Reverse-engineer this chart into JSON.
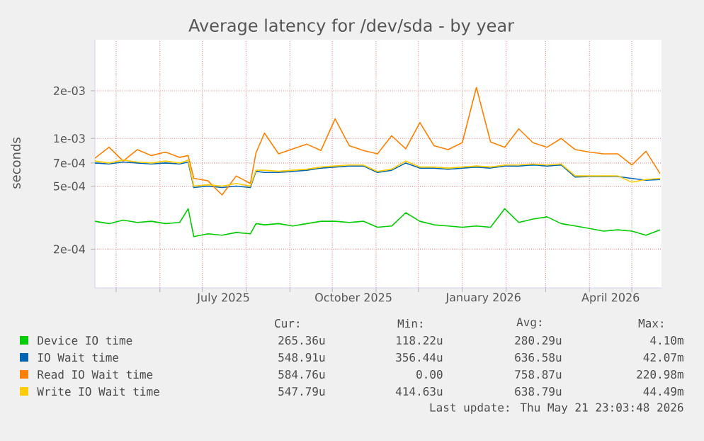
{
  "chart_data": {
    "type": "line",
    "title": "Average latency for /dev/sda - by year",
    "ylabel": "seconds",
    "log": "y",
    "grid": true,
    "legend": "bottom",
    "marker": "none",
    "line_style": "solid",
    "xlim": [
      "2025-04-16",
      "2026-05-22"
    ],
    "ylim": [
      0.000114,
      0.0042
    ],
    "yticks": [
      {
        "value": 0.0002,
        "label": "2e-04"
      },
      {
        "value": 0.0005,
        "label": "5e-04"
      },
      {
        "value": 0.0007,
        "label": "7e-04"
      },
      {
        "value": 0.001,
        "label": "1e-03"
      },
      {
        "value": 0.002,
        "label": "2e-03"
      }
    ],
    "xticks": [
      {
        "value": "2025-05-01",
        "label": null
      },
      {
        "value": "2025-06-01",
        "label": null
      },
      {
        "value": "2025-07-01",
        "label": null
      },
      {
        "value": "2025-07-16",
        "label": "July 2025"
      },
      {
        "value": "2025-08-01",
        "label": null
      },
      {
        "value": "2025-09-01",
        "label": null
      },
      {
        "value": "2025-10-01",
        "label": null
      },
      {
        "value": "2025-10-16",
        "label": "October 2025"
      },
      {
        "value": "2025-11-01",
        "label": null
      },
      {
        "value": "2025-12-01",
        "label": null
      },
      {
        "value": "2026-01-01",
        "label": null
      },
      {
        "value": "2026-01-16",
        "label": "January 2026"
      },
      {
        "value": "2026-02-01",
        "label": null
      },
      {
        "value": "2026-03-01",
        "label": null
      },
      {
        "value": "2026-04-01",
        "label": null
      },
      {
        "value": "2026-04-16",
        "label": "April 2026"
      },
      {
        "value": "2026-05-01",
        "label": null
      }
    ],
    "x": [
      "2025-04-16",
      "2025-04-26",
      "2025-05-06",
      "2025-05-16",
      "2025-05-26",
      "2025-06-05",
      "2025-06-15",
      "2025-06-21",
      "2025-06-25",
      "2025-07-05",
      "2025-07-15",
      "2025-07-25",
      "2025-08-04",
      "2025-08-08",
      "2025-08-14",
      "2025-08-24",
      "2025-09-03",
      "2025-09-13",
      "2025-09-23",
      "2025-10-03",
      "2025-10-13",
      "2025-10-23",
      "2025-11-02",
      "2025-11-12",
      "2025-11-22",
      "2025-12-02",
      "2025-12-12",
      "2025-12-22",
      "2026-01-01",
      "2026-01-11",
      "2026-01-21",
      "2026-01-31",
      "2026-02-10",
      "2026-02-20",
      "2026-03-02",
      "2026-03-12",
      "2026-03-22",
      "2026-04-01",
      "2026-04-11",
      "2026-04-21",
      "2026-05-01",
      "2026-05-11",
      "2026-05-21"
    ],
    "series": [
      {
        "name": "Device IO time",
        "color": "#00cc00",
        "values": [
          0.0003,
          0.00029,
          0.000305,
          0.000295,
          0.0003,
          0.00029,
          0.000295,
          0.00036,
          0.00024,
          0.00025,
          0.000245,
          0.000255,
          0.00025,
          0.00029,
          0.000285,
          0.00029,
          0.00028,
          0.00029,
          0.0003,
          0.0003,
          0.000295,
          0.0003,
          0.000275,
          0.00028,
          0.00034,
          0.0003,
          0.000285,
          0.00028,
          0.000275,
          0.00028,
          0.000275,
          0.00036,
          0.000295,
          0.00031,
          0.00032,
          0.00029,
          0.00028,
          0.00027,
          0.00026,
          0.000265,
          0.00026,
          0.000245,
          0.000265
        ]
      },
      {
        "name": "IO Wait time",
        "color": "#0066b3",
        "values": [
          0.0007,
          0.00069,
          0.00071,
          0.0007,
          0.00069,
          0.0007,
          0.00069,
          0.00071,
          0.00049,
          0.0005,
          0.00049,
          0.0005,
          0.00049,
          0.00062,
          0.00061,
          0.00061,
          0.00062,
          0.00063,
          0.00065,
          0.00066,
          0.00067,
          0.00067,
          0.00061,
          0.00063,
          0.0007,
          0.00065,
          0.00065,
          0.00064,
          0.00065,
          0.00066,
          0.00065,
          0.00067,
          0.00067,
          0.00068,
          0.00067,
          0.00068,
          0.00057,
          0.000575,
          0.000575,
          0.000575,
          null,
          0.000545,
          0.00055
        ]
      },
      {
        "name": "Read IO Wait time",
        "color": "#ff8000",
        "values": [
          0.00075,
          0.00088,
          0.00072,
          0.00085,
          0.00078,
          0.00082,
          0.00076,
          0.00078,
          0.00056,
          0.00054,
          0.00044,
          0.00058,
          0.00052,
          0.00081,
          0.00108,
          0.0008,
          0.00086,
          0.00092,
          0.00084,
          0.00133,
          0.0009,
          0.00084,
          0.0008,
          0.00104,
          0.00086,
          0.00126,
          0.0009,
          0.00085,
          0.00094,
          0.0021,
          0.00095,
          0.00088,
          0.00115,
          0.00094,
          0.00088,
          0.001,
          0.00085,
          0.00082,
          0.0008,
          0.0008,
          0.00068,
          0.00083,
          0.0006
        ]
      },
      {
        "name": "Write IO Wait time",
        "color": "#ffcc00",
        "values": [
          0.00072,
          0.0007,
          0.00073,
          0.00071,
          0.0007,
          0.00072,
          0.0007,
          0.00073,
          0.0005,
          0.00051,
          0.0005,
          0.00052,
          0.0005,
          0.00063,
          0.00063,
          0.00062,
          0.00063,
          0.00064,
          0.00066,
          0.00067,
          0.00068,
          0.00068,
          0.00062,
          0.00064,
          0.00072,
          0.00066,
          0.00066,
          0.00065,
          0.00066,
          0.00067,
          0.00066,
          0.00068,
          0.00068,
          0.00069,
          0.00068,
          0.00069,
          0.00058,
          0.00058,
          0.00058,
          0.00058,
          0.00053,
          0.00055,
          0.00056
        ]
      }
    ],
    "annotations": [
      "Cur:",
      "Min:",
      "Avg:",
      "Max:",
      "265.36u",
      "118.22u",
      "280.29u",
      "4.10m",
      "548.91u",
      "356.44u",
      "636.58u",
      "42.07m",
      "584.76u",
      "0.00",
      "758.87u",
      "220.98m",
      "547.79u",
      "414.63u",
      "638.79u",
      "44.49m",
      "Last update: Thu May 21 23:03:48 2026"
    ]
  }
}
